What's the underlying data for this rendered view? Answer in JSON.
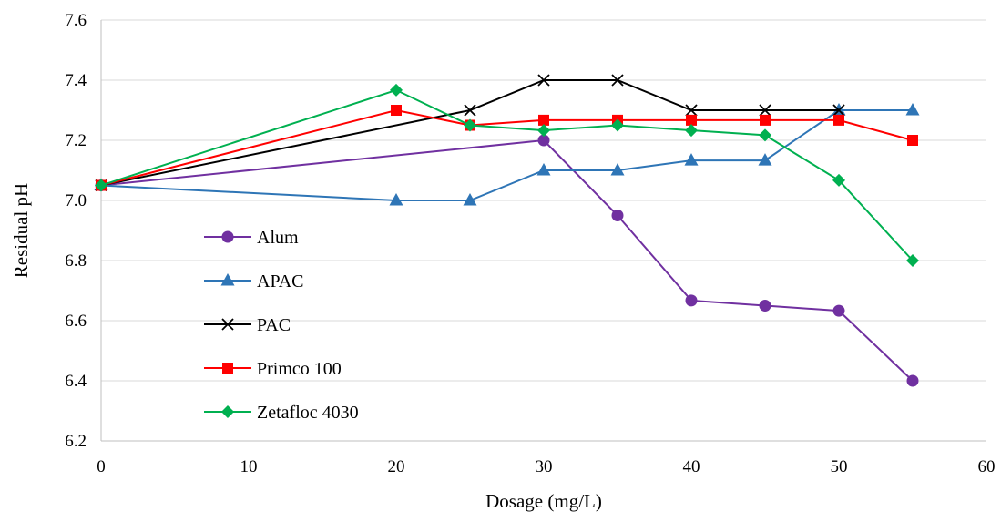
{
  "chart_data": {
    "type": "line",
    "title": "",
    "xlabel": "Dosage (mg/L)",
    "ylabel": "Residual pH",
    "xlim": [
      0,
      60
    ],
    "ylim": [
      6.2,
      7.6
    ],
    "x_ticks": [
      "0",
      "10",
      "20",
      "30",
      "40",
      "50",
      "60"
    ],
    "y_ticks": [
      "6.2",
      "6.4",
      "6.6",
      "6.8",
      "7.0",
      "7.2",
      "7.4",
      "7.6"
    ],
    "grid": "horizontal",
    "legend_position": "left-center",
    "series": [
      {
        "name": "Alum",
        "color": "#7030a0",
        "marker": "circle",
        "x": [
          0,
          30,
          35,
          40,
          45,
          50,
          55
        ],
        "y": [
          7.05,
          7.2,
          6.95,
          6.667,
          6.65,
          6.633,
          6.4
        ]
      },
      {
        "name": "APAC",
        "color": "#2e75b6",
        "marker": "triangle",
        "x": [
          0,
          20,
          25,
          30,
          35,
          40,
          45,
          50,
          55
        ],
        "y": [
          7.05,
          7.0,
          7.0,
          7.1,
          7.1,
          7.133,
          7.133,
          7.3,
          7.3
        ]
      },
      {
        "name": "PAC",
        "color": "#000000",
        "marker": "x",
        "x": [
          0,
          25,
          30,
          35,
          40,
          45,
          50
        ],
        "y": [
          7.05,
          7.3,
          7.4,
          7.4,
          7.3,
          7.3,
          7.3
        ]
      },
      {
        "name": "Primco 100",
        "color": "#ff0000",
        "marker": "square",
        "x": [
          0,
          20,
          25,
          30,
          35,
          40,
          45,
          50,
          55
        ],
        "y": [
          7.05,
          7.3,
          7.25,
          7.267,
          7.267,
          7.267,
          7.267,
          7.267,
          7.2
        ]
      },
      {
        "name": "Zetafloc 4030",
        "color": "#00b050",
        "marker": "diamond",
        "x": [
          0,
          20,
          25,
          30,
          35,
          40,
          45,
          50,
          55
        ],
        "y": [
          7.05,
          7.367,
          7.25,
          7.233,
          7.25,
          7.233,
          7.217,
          7.067,
          6.8
        ]
      }
    ]
  }
}
